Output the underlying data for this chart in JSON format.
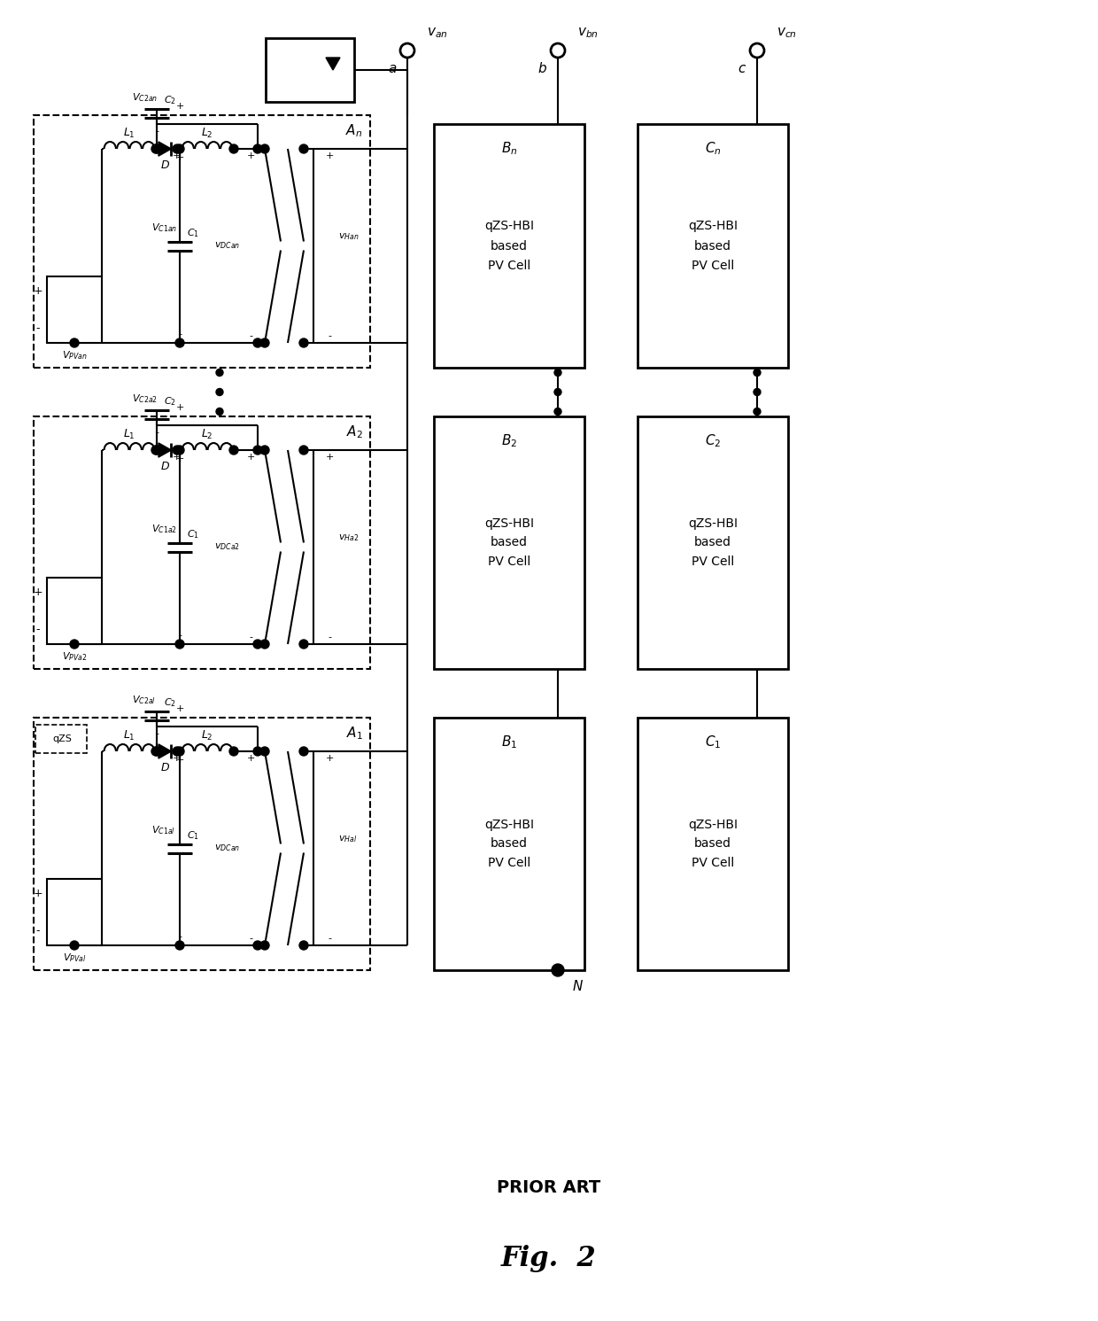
{
  "fig_width": 12.4,
  "fig_height": 14.91,
  "bg_color": "#ffffff",
  "blocks": [
    {
      "suffix": "n",
      "show_qzs": false,
      "vpv": "$V_{PVan}$",
      "vc2": "$V_{C2an}$",
      "vc1": "$V_{C1an}$",
      "vdc": "$v_{DCan}$",
      "vha": "$v_{Han}$",
      "an": "$A_n$"
    },
    {
      "suffix": "2",
      "show_qzs": false,
      "vpv": "$V_{PVa2}$",
      "vc2": "$V_{C2a2}$",
      "vc1": "$V_{C1a2}$",
      "vdc": "$v_{DCa2}$",
      "vha": "$v_{Ha2}$",
      "an": "$A_2$"
    },
    {
      "suffix": "1",
      "show_qzs": true,
      "vpv": "$V_{PVal}$",
      "vc2": "$V_{C2al}$",
      "vc1": "$V_{C1al}$",
      "vdc": "$v_{DCan}$",
      "vha": "$v_{Hal}$",
      "an": "$A_1$"
    }
  ],
  "Bn_labels": [
    "$B_n$",
    "$B_2$",
    "$B_1$"
  ],
  "Cn_labels": [
    "$C_n$",
    "$C_2$",
    "$C_1$"
  ],
  "prior_art": "PRIOR ART",
  "fig_label": "Fig.  2"
}
